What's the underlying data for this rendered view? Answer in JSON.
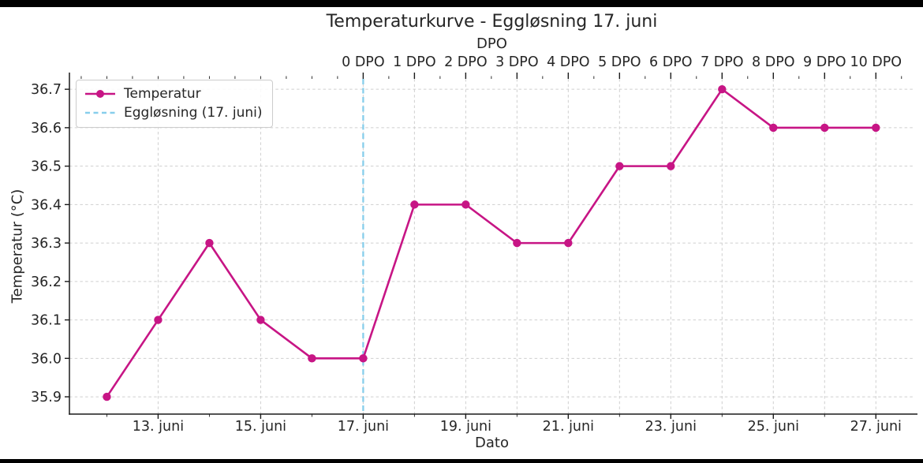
{
  "chart_data": {
    "type": "line",
    "title": "Temperaturkurve - Eggløsning 17. juni",
    "xlabel": "Dato",
    "ylabel": "Temperatur (°C)",
    "top_axis_label": "DPO",
    "series": [
      {
        "name": "Temperatur",
        "color": "#C71585",
        "marker": "circle",
        "x_days": [
          12,
          13,
          14,
          15,
          16,
          17,
          18,
          19,
          20,
          21,
          22,
          23,
          24,
          25,
          26,
          27
        ],
        "values": [
          35.9,
          36.1,
          36.3,
          36.1,
          36.0,
          36.0,
          36.4,
          36.4,
          36.3,
          36.3,
          36.5,
          36.5,
          36.7,
          36.6,
          36.6,
          36.6
        ]
      }
    ],
    "vline": {
      "label": "Eggløsning (17. juni)",
      "x_day": 17,
      "color": "#87CEEB",
      "style": "dashed"
    },
    "x_ticks": [
      {
        "day": 13,
        "label": "13. juni"
      },
      {
        "day": 15,
        "label": "15. juni"
      },
      {
        "day": 17,
        "label": "17. juni"
      },
      {
        "day": 19,
        "label": "19. juni"
      },
      {
        "day": 21,
        "label": "21. juni"
      },
      {
        "day": 23,
        "label": "23. juni"
      },
      {
        "day": 25,
        "label": "25. juni"
      },
      {
        "day": 27,
        "label": "27. juni"
      }
    ],
    "x_minor_tick_days": [
      12,
      14,
      16,
      18,
      20,
      22,
      24,
      26
    ],
    "y_ticks": [
      {
        "value": 35.9,
        "label": "35.9"
      },
      {
        "value": 36.0,
        "label": "36.0"
      },
      {
        "value": 36.1,
        "label": "36.1"
      },
      {
        "value": 36.2,
        "label": "36.2"
      },
      {
        "value": 36.3,
        "label": "36.3"
      },
      {
        "value": 36.4,
        "label": "36.4"
      },
      {
        "value": 36.5,
        "label": "36.5"
      },
      {
        "value": 36.6,
        "label": "36.6"
      },
      {
        "value": 36.7,
        "label": "36.7"
      }
    ],
    "top_ticks": [
      {
        "day": 17,
        "label": "0 DPO"
      },
      {
        "day": 18,
        "label": "1 DPO"
      },
      {
        "day": 19,
        "label": "2 DPO"
      },
      {
        "day": 20,
        "label": "3 DPO"
      },
      {
        "day": 21,
        "label": "4 DPO"
      },
      {
        "day": 22,
        "label": "5 DPO"
      },
      {
        "day": 23,
        "label": "6 DPO"
      },
      {
        "day": 24,
        "label": "7 DPO"
      },
      {
        "day": 25,
        "label": "8 DPO"
      },
      {
        "day": 26,
        "label": "9 DPO"
      },
      {
        "day": 27,
        "label": "10 DPO"
      }
    ],
    "xlim_days": [
      11.27,
      27.75
    ],
    "ylim": [
      35.855,
      36.727
    ],
    "grid": true,
    "legend_position": "upper left"
  },
  "colors": {
    "line": "#C71585",
    "vline": "#87CEEB",
    "grid": "#cfcfcf",
    "text": "#262626",
    "letterbox": "#000000"
  }
}
